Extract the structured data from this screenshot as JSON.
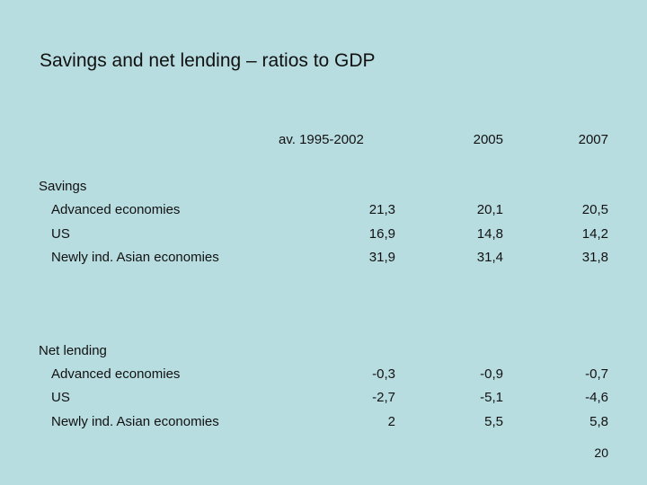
{
  "title": "Savings and net lending – ratios to GDP",
  "columns": [
    "av. 1995-2002",
    "2005",
    "2007"
  ],
  "sections": [
    {
      "name": "Savings",
      "rows": [
        {
          "label": "Advanced economies",
          "values": [
            "21,3",
            "20,1",
            "20,5"
          ]
        },
        {
          "label": "US",
          "values": [
            "16,9",
            "14,8",
            "14,2"
          ]
        },
        {
          "label": "Newly ind. Asian economies",
          "values": [
            "31,9",
            "31,4",
            "31,8"
          ]
        }
      ]
    },
    {
      "name": "Net lending",
      "rows": [
        {
          "label": "Advanced economies",
          "values": [
            "-0,3",
            "-0,9",
            "-0,7"
          ]
        },
        {
          "label": "US",
          "values": [
            "-2,7",
            "-5,1",
            "-4,6"
          ]
        },
        {
          "label": "Newly ind. Asian economies",
          "values": [
            "2",
            "5,5",
            "5,8"
          ]
        }
      ]
    }
  ],
  "page_number": "20"
}
